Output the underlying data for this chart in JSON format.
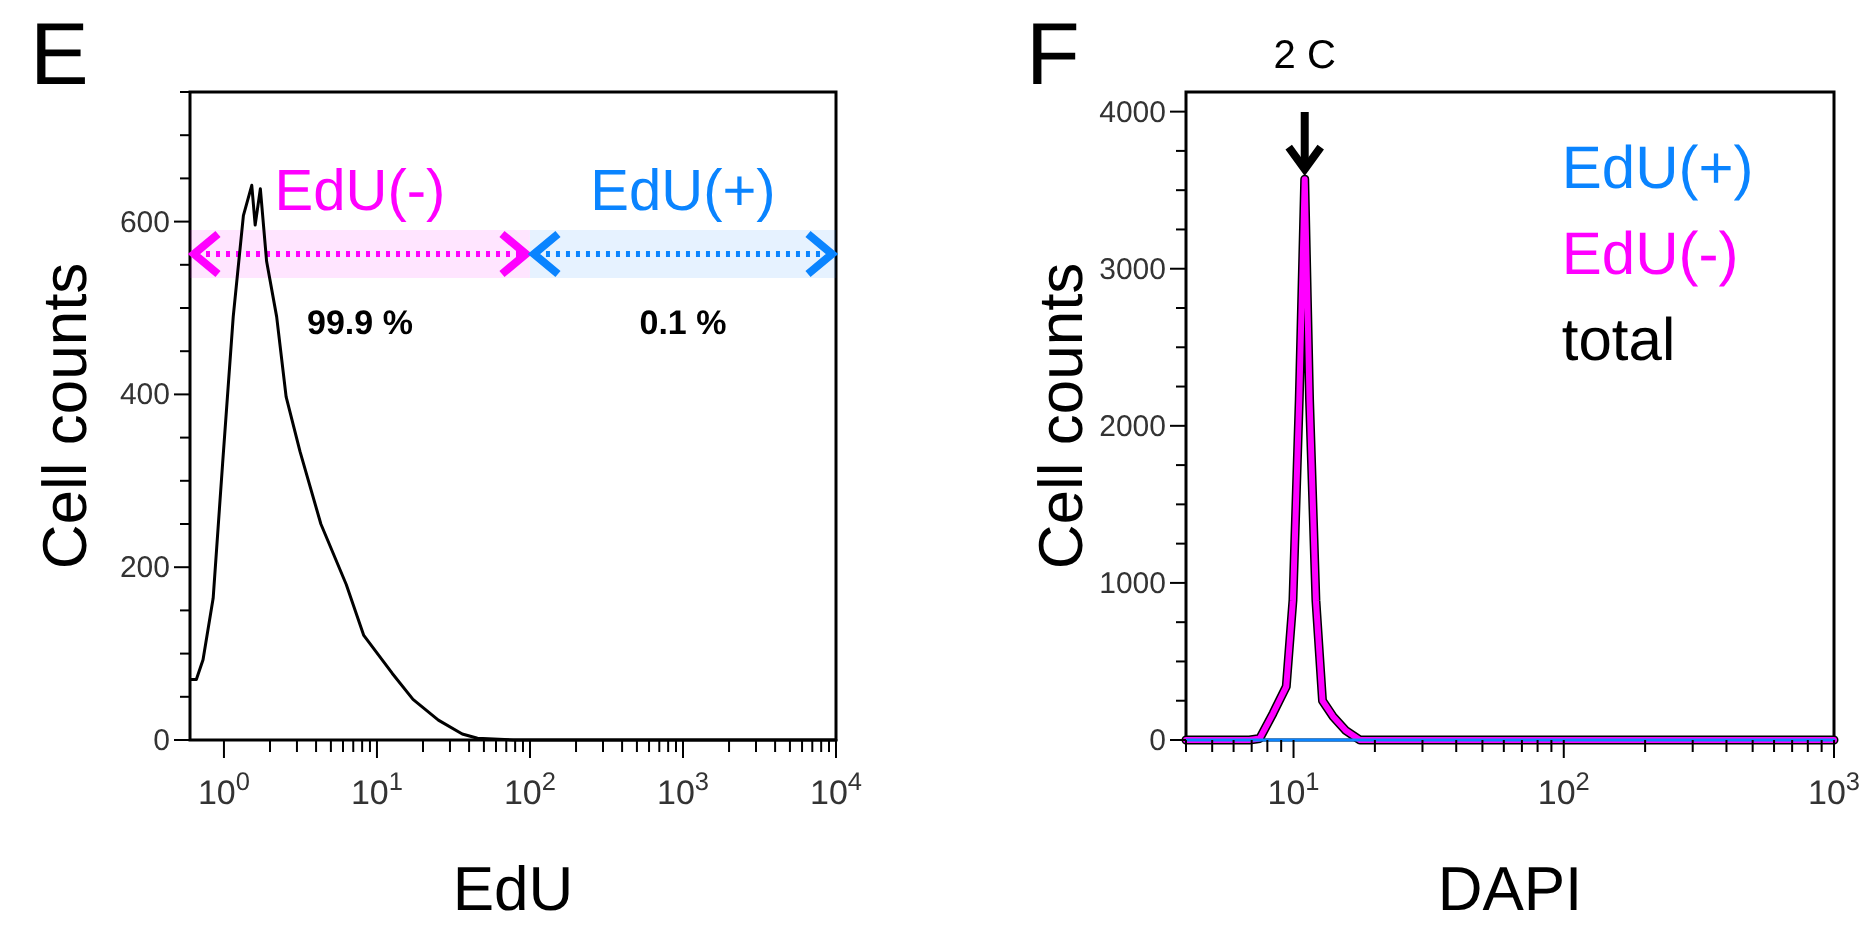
{
  "chart_data": [
    {
      "type": "line",
      "title": "E",
      "xlabel": "EdU",
      "ylabel": "Cell counts",
      "log": "x",
      "xlim": [
        0.6,
        10000
      ],
      "ylim": [
        0,
        750
      ],
      "xticks": [
        {
          "value": 1,
          "label": "10$^{0}$"
        },
        {
          "value": 2,
          "label": null
        },
        {
          "value": 3,
          "label": null
        },
        {
          "value": 4,
          "label": null
        },
        {
          "value": 5,
          "label": null
        },
        {
          "value": 6,
          "label": null
        },
        {
          "value": 7,
          "label": null
        },
        {
          "value": 8,
          "label": null
        },
        {
          "value": 9,
          "label": null
        },
        {
          "value": 10,
          "label": "10$^{1}$"
        },
        {
          "value": 20,
          "label": null
        },
        {
          "value": 30,
          "label": null
        },
        {
          "value": 40,
          "label": null
        },
        {
          "value": 50,
          "label": null
        },
        {
          "value": 60,
          "label": null
        },
        {
          "value": 70,
          "label": null
        },
        {
          "value": 80,
          "label": null
        },
        {
          "value": 90,
          "label": null
        },
        {
          "value": 100,
          "label": "10$^{2}$"
        },
        {
          "value": 200,
          "label": null
        },
        {
          "value": 300,
          "label": null
        },
        {
          "value": 400,
          "label": null
        },
        {
          "value": 500,
          "label": null
        },
        {
          "value": 600,
          "label": null
        },
        {
          "value": 700,
          "label": null
        },
        {
          "value": 800,
          "label": null
        },
        {
          "value": 900,
          "label": null
        },
        {
          "value": 1000,
          "label": "10$^{3}$"
        },
        {
          "value": 2000,
          "label": null
        },
        {
          "value": 3000,
          "label": null
        },
        {
          "value": 4000,
          "label": null
        },
        {
          "value": 5000,
          "label": null
        },
        {
          "value": 6000,
          "label": null
        },
        {
          "value": 7000,
          "label": null
        },
        {
          "value": 8000,
          "label": null
        },
        {
          "value": 9000,
          "label": null
        },
        {
          "value": 10000,
          "label": "10$^{4}$"
        }
      ],
      "yticks": [
        0,
        {
          "value": 50,
          "label": null
        },
        {
          "value": 100,
          "label": null
        },
        {
          "value": 150,
          "label": null
        },
        200,
        {
          "value": 250,
          "label": null
        },
        {
          "value": 300,
          "label": null
        },
        {
          "value": 350,
          "label": null
        },
        400,
        {
          "value": 450,
          "label": null
        },
        {
          "value": 500,
          "label": null
        },
        {
          "value": 550,
          "label": null
        },
        600,
        {
          "value": 650,
          "label": null
        },
        {
          "value": 700,
          "label": null
        },
        {
          "value": 750,
          "label": null
        }
      ],
      "series": [
        {
          "color": "#000000",
          "x": [
            0.61,
            0.66,
            0.73,
            0.85,
            0.98,
            1.15,
            1.34,
            1.52,
            1.6,
            1.73,
            1.9,
            2.21,
            2.55,
            3.14,
            4.3,
            6.3,
            8.2,
            12.6,
            17.2,
            25.2,
            36.1,
            45.4,
            78,
            10000
          ],
          "values": [
            70,
            70,
            93,
            164,
            320,
            490,
            607,
            642,
            596,
            638,
            554,
            490,
            397,
            334,
            250,
            180,
            121,
            77,
            47,
            23,
            7,
            2,
            0,
            0
          ]
        }
      ],
      "bands": [
        {
          "axis": "x",
          "from": 0.6,
          "to": 100,
          "label": "EdU(-)",
          "color": "#ff00ff"
        },
        {
          "axis": "x",
          "from": 100,
          "to": 10000,
          "label": "EdU(+)",
          "color": "#0a84ff"
        }
      ],
      "annotations": [
        "99.9 %",
        "0.1 %"
      ]
    },
    {
      "type": "line",
      "title": "F",
      "xlabel": "DAPI",
      "ylabel": "Cell counts",
      "log": "x",
      "xlim": [
        4,
        1000
      ],
      "ylim": [
        0,
        4125
      ],
      "legend": "top right",
      "xticks": [
        {
          "value": 4,
          "label": null
        },
        {
          "value": 5,
          "label": null
        },
        {
          "value": 6,
          "label": null
        },
        {
          "value": 7,
          "label": null
        },
        {
          "value": 8,
          "label": null
        },
        {
          "value": 9,
          "label": null
        },
        {
          "value": 10,
          "label": "10$^{1}$"
        },
        {
          "value": 20,
          "label": null
        },
        {
          "value": 30,
          "label": null
        },
        {
          "value": 40,
          "label": null
        },
        {
          "value": 50,
          "label": null
        },
        {
          "value": 60,
          "label": null
        },
        {
          "value": 70,
          "label": null
        },
        {
          "value": 80,
          "label": null
        },
        {
          "value": 90,
          "label": null
        },
        {
          "value": 100,
          "label": "10$^{2}$"
        },
        {
          "value": 200,
          "label": null
        },
        {
          "value": 300,
          "label": null
        },
        {
          "value": 400,
          "label": null
        },
        {
          "value": 500,
          "label": null
        },
        {
          "value": 600,
          "label": null
        },
        {
          "value": 700,
          "label": null
        },
        {
          "value": 800,
          "label": null
        },
        {
          "value": 900,
          "label": null
        },
        {
          "value": 1000,
          "label": "10$^{3}$"
        }
      ],
      "yticks": [
        0,
        {
          "value": 250,
          "label": null
        },
        {
          "value": 500,
          "label": null
        },
        {
          "value": 750,
          "label": null
        },
        1000,
        {
          "value": 1250,
          "label": null
        },
        {
          "value": 1500,
          "label": null
        },
        {
          "value": 1750,
          "label": null
        },
        2000,
        {
          "value": 2250,
          "label": null
        },
        {
          "value": 2500,
          "label": null
        },
        {
          "value": 2750,
          "label": null
        },
        3000,
        {
          "value": 3250,
          "label": null
        },
        {
          "value": 3500,
          "label": null
        },
        {
          "value": 3750,
          "label": null
        },
        4000
      ],
      "series": [
        {
          "name": "EdU(+)",
          "color": "#0a84ff",
          "x": [
            4,
            1000
          ],
          "values": [
            0,
            0
          ]
        },
        {
          "name": "EdU(-)",
          "color": "#ff00ff",
          "x": [
            4,
            6.87,
            7.5,
            8.4,
            9.4,
            9.95,
            10.5,
            11,
            11.46,
            12.1,
            12.8,
            14,
            15.6,
            17.6,
            1000
          ],
          "values": [
            0,
            0,
            10,
            170,
            340,
            890,
            2170,
            3570,
            2170,
            890,
            250,
            150,
            60,
            0,
            0
          ]
        },
        {
          "name": "total",
          "color": "#000000",
          "x": [
            4,
            6.87,
            7.5,
            8.4,
            9.4,
            9.95,
            10.5,
            11,
            11.46,
            12.1,
            12.8,
            14,
            15.6,
            17.6,
            1000
          ],
          "values": [
            0,
            0,
            10,
            170,
            340,
            890,
            2170,
            3570,
            2170,
            890,
            250,
            150,
            60,
            0,
            0
          ]
        }
      ],
      "annotations": [
        {
          "text": "2 C",
          "x": 11,
          "y": 3570
        }
      ]
    }
  ]
}
